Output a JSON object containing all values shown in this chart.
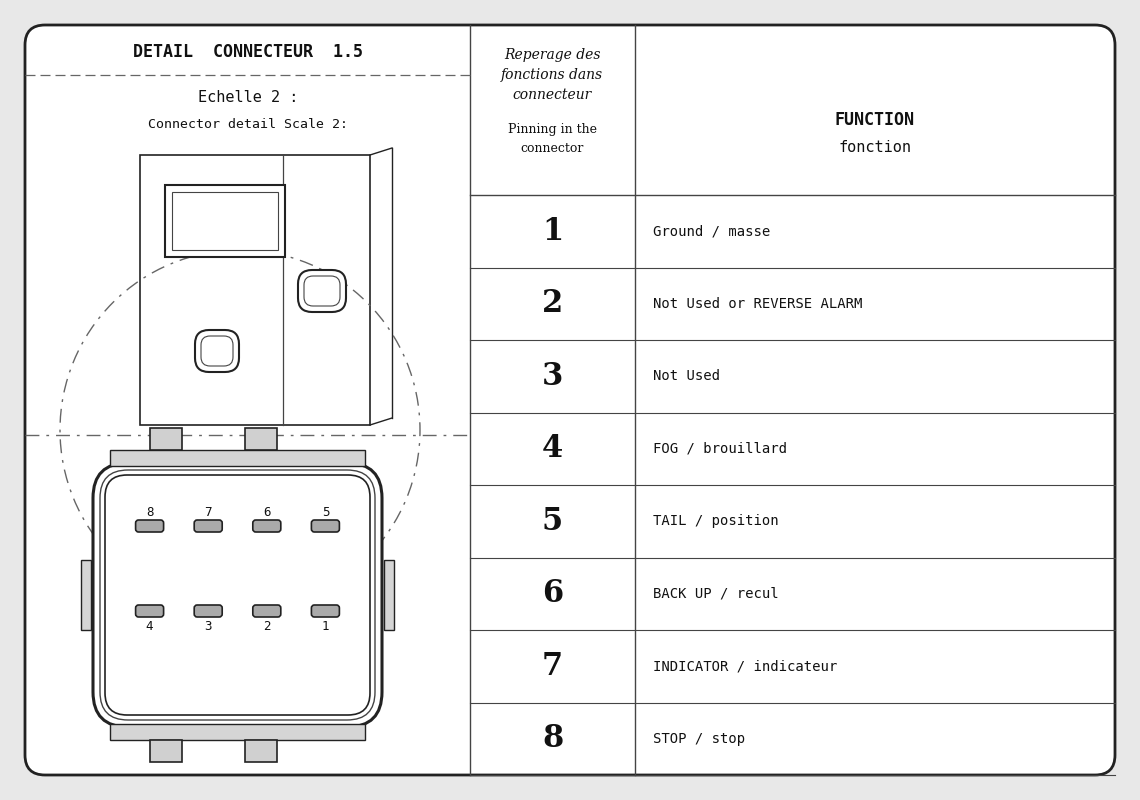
{
  "title": "DETAIL  CONNECTEUR  1.5",
  "subtitle1": "Echelle 2 :",
  "subtitle2": "Connector detail Scale 2:",
  "col1_header_line1": "Reperage des",
  "col1_header_line2": "fonctions dans",
  "col1_header_line3": "connecteur",
  "col1_header_line4": "Pinning in the",
  "col1_header_line5": "connector",
  "col2_header_line1": "FUNCTION",
  "col2_header_line2": "fonction",
  "rows": [
    {
      "pin": "1",
      "func": "Ground / masse"
    },
    {
      "pin": "2",
      "func": "Not Used or REVERSE ALARM"
    },
    {
      "pin": "3",
      "func": "Not Used"
    },
    {
      "pin": "4",
      "func": "FOG / brouillard"
    },
    {
      "pin": "5",
      "func": "TAIL / position"
    },
    {
      "pin": "6",
      "func": "BACK UP / recul"
    },
    {
      "pin": "7",
      "func": "INDICATOR / indicateur"
    },
    {
      "pin": "8",
      "func": "STOP / stop"
    }
  ],
  "bg_color": "#e8e8e8",
  "border_color": "#222222",
  "line_color": "#444444",
  "text_color": "#111111",
  "dash_color": "#666666",
  "white": "#ffffff"
}
